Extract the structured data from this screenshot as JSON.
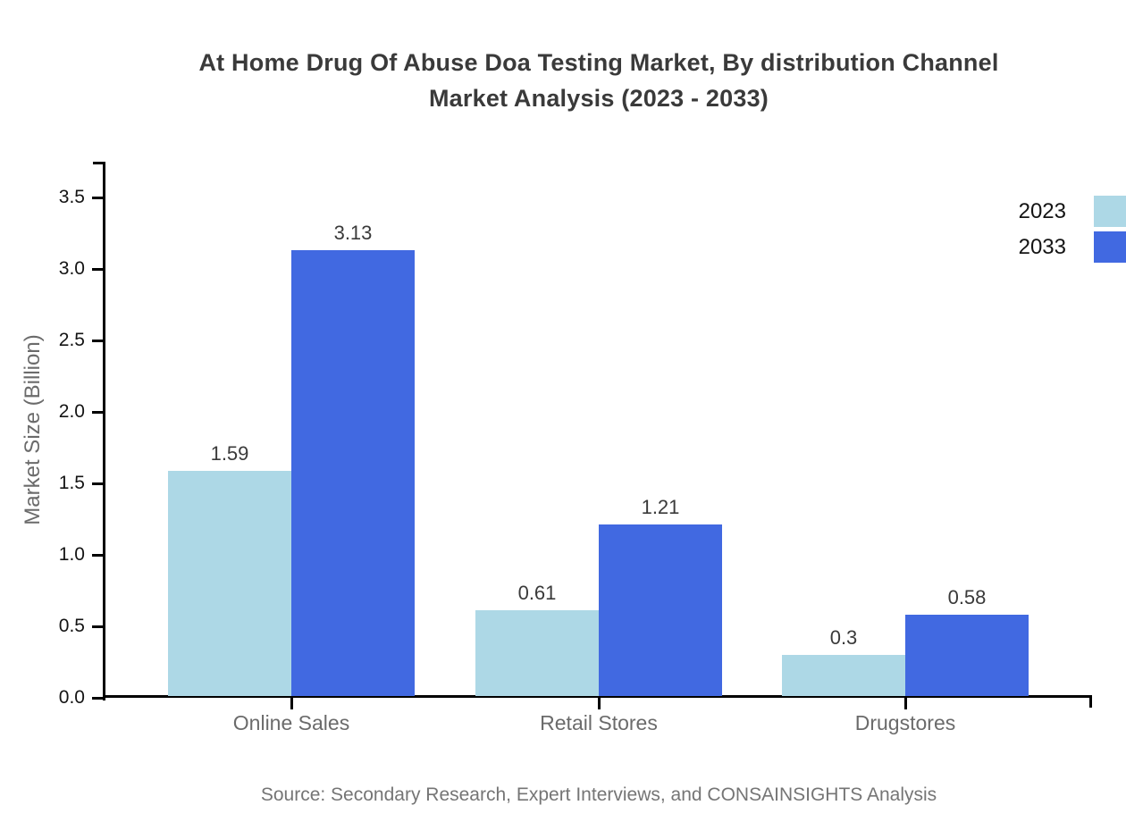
{
  "title": {
    "line1": "At Home Drug Of Abuse Doa Testing Market, By distribution Channel",
    "line2": "Market Analysis (2023 - 2033)"
  },
  "source": "Source: Secondary Research, Expert Interviews, and CONSAINSIGHTS Analysis",
  "legend": {
    "items": [
      {
        "label": "2023",
        "color": "#ADD8E6"
      },
      {
        "label": "2033",
        "color": "#4169E1"
      }
    ]
  },
  "chart_data": {
    "type": "bar",
    "categories": [
      "Online Sales",
      "Retail Stores",
      "Drugstores"
    ],
    "series": [
      {
        "name": "2023",
        "color": "#ADD8E6",
        "values": [
          1.59,
          0.61,
          0.3
        ],
        "labels": [
          "1.59",
          "0.61",
          "0.3"
        ]
      },
      {
        "name": "2033",
        "color": "#4169E1",
        "values": [
          3.13,
          1.21,
          0.58
        ],
        "labels": [
          "3.13",
          "1.21",
          "0.58"
        ]
      }
    ],
    "title": "At Home Drug Of Abuse Doa Testing Market, By distribution Channel Market Analysis (2023 - 2033)",
    "xlabel": "",
    "ylabel": "Market Size (Billion)",
    "ylim": [
      0,
      3.5
    ],
    "ytick_step": 0.5,
    "yticks": [
      "0.0",
      "0.5",
      "1.0",
      "1.5",
      "2.0",
      "2.5",
      "3.0",
      "3.5"
    ],
    "grid": false,
    "legend_position": "outside-upper-right",
    "axis_color": "#000000"
  }
}
